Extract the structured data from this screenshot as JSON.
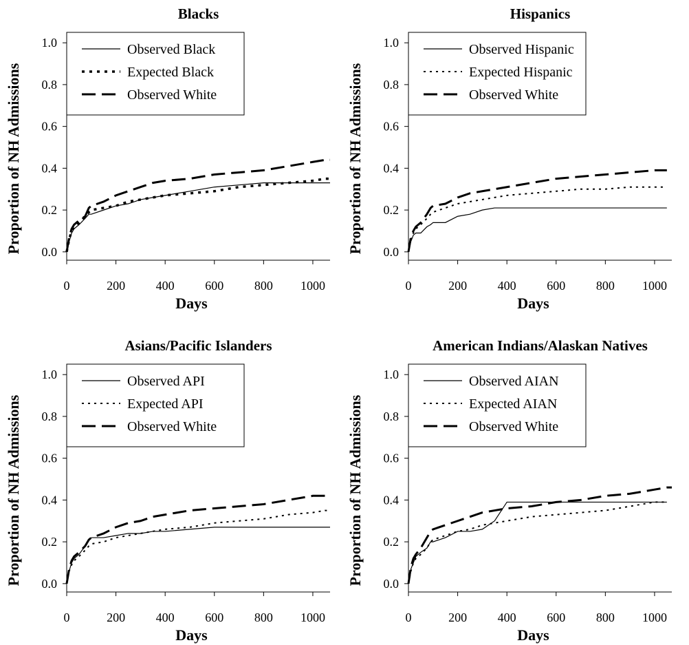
{
  "chart_data": [
    {
      "type": "line",
      "title": "Blacks",
      "x_label": "Days",
      "y_label": "Proportion of NH Admissions",
      "x": [
        0,
        10,
        20,
        30,
        50,
        75,
        90,
        100,
        150,
        200,
        250,
        300,
        350,
        400,
        500,
        600,
        700,
        800,
        900,
        1000,
        1050,
        1070
      ],
      "xlim": [
        0,
        1070
      ],
      "ylim": [
        -0.04,
        1.05
      ],
      "xticks": [
        0,
        200,
        400,
        600,
        800,
        1000
      ],
      "yticks": [
        {
          "value": 0,
          "label": "0.0"
        },
        {
          "value": 0.2,
          "label": "0.2"
        },
        {
          "value": 0.4,
          "label": "0.4"
        },
        {
          "value": 0.6,
          "label": "0.6"
        },
        {
          "value": 0.8,
          "label": "0.8"
        },
        {
          "value": 1,
          "label": "1.0"
        }
      ],
      "legend": "upper left",
      "series": [
        {
          "name": "Observed Black",
          "color": "#000000",
          "linestyle": "solid",
          "linewidth": 1.2,
          "values": [
            0,
            0.05,
            0.09,
            0.11,
            0.13,
            0.16,
            0.18,
            0.18,
            0.2,
            0.22,
            0.23,
            0.25,
            0.26,
            0.27,
            0.29,
            0.31,
            0.32,
            0.33,
            0.33,
            0.33,
            0.33,
            0.33
          ]
        },
        {
          "name": "Expected Black",
          "color": "#000000",
          "linestyle": "dotted",
          "linewidth": 3.5,
          "values": [
            0,
            0.06,
            0.1,
            0.12,
            0.14,
            0.17,
            0.19,
            0.2,
            0.21,
            0.22,
            0.24,
            0.25,
            0.26,
            0.27,
            0.28,
            0.29,
            0.31,
            0.32,
            0.33,
            0.34,
            0.35,
            0.35
          ]
        },
        {
          "name": "Observed White",
          "color": "#000000",
          "linestyle": "dashed",
          "linewidth": 3,
          "values": [
            0,
            0.07,
            0.11,
            0.13,
            0.15,
            0.17,
            0.21,
            0.22,
            0.24,
            0.27,
            0.29,
            0.31,
            0.33,
            0.34,
            0.35,
            0.37,
            0.38,
            0.39,
            0.41,
            0.43,
            0.44,
            0.44
          ]
        }
      ]
    },
    {
      "type": "line",
      "title": "Hispanics",
      "x_label": "Days",
      "y_label": "Proportion of NH Admissions",
      "x": [
        0,
        10,
        20,
        30,
        50,
        75,
        90,
        100,
        150,
        200,
        250,
        300,
        350,
        400,
        500,
        600,
        700,
        800,
        900,
        1000,
        1050,
        1070
      ],
      "xlim": [
        0,
        1070
      ],
      "ylim": [
        -0.04,
        1.05
      ],
      "xticks": [
        0,
        200,
        400,
        600,
        800,
        1000
      ],
      "yticks": [
        {
          "value": 0,
          "label": "0.0"
        },
        {
          "value": 0.2,
          "label": "0.2"
        },
        {
          "value": 0.4,
          "label": "0.4"
        },
        {
          "value": 0.6,
          "label": "0.6"
        },
        {
          "value": 0.8,
          "label": "0.8"
        },
        {
          "value": 1,
          "label": "1.0"
        }
      ],
      "legend": "upper left",
      "series": [
        {
          "name": "Observed Hispanic",
          "color": "#000000",
          "linestyle": "solid",
          "linewidth": 1.2,
          "values": [
            0,
            0.05,
            0.08,
            0.09,
            0.09,
            0.12,
            0.13,
            0.14,
            0.14,
            0.17,
            0.18,
            0.2,
            0.21,
            0.21,
            0.21,
            0.21,
            0.21,
            0.21,
            0.21,
            0.21,
            0.21,
            null
          ]
        },
        {
          "name": "Expected Hispanic",
          "color": "#000000",
          "linestyle": "dotted",
          "linewidth": 2,
          "values": [
            0,
            0.06,
            0.09,
            0.11,
            0.13,
            0.16,
            0.18,
            0.19,
            0.21,
            0.23,
            0.24,
            0.25,
            0.26,
            0.27,
            0.28,
            0.29,
            0.3,
            0.3,
            0.31,
            0.31,
            0.31,
            null
          ]
        },
        {
          "name": "Observed White",
          "color": "#000000",
          "linestyle": "dashed",
          "linewidth": 3,
          "values": [
            0,
            0.07,
            0.1,
            0.12,
            0.14,
            0.18,
            0.21,
            0.22,
            0.23,
            0.26,
            0.28,
            0.29,
            0.3,
            0.31,
            0.33,
            0.35,
            0.36,
            0.37,
            0.38,
            0.39,
            0.39,
            null
          ]
        }
      ]
    },
    {
      "type": "line",
      "title": "Asians/Pacific Islanders",
      "x_label": "Days",
      "y_label": "Proportion of NH Admissions",
      "x": [
        0,
        10,
        20,
        30,
        50,
        75,
        90,
        100,
        150,
        200,
        250,
        300,
        350,
        400,
        500,
        600,
        700,
        800,
        900,
        1000,
        1050,
        1070
      ],
      "xlim": [
        0,
        1070
      ],
      "ylim": [
        -0.04,
        1.05
      ],
      "xticks": [
        0,
        200,
        400,
        600,
        800,
        1000
      ],
      "yticks": [
        {
          "value": 0,
          "label": "0.0"
        },
        {
          "value": 0.2,
          "label": "0.2"
        },
        {
          "value": 0.4,
          "label": "0.4"
        },
        {
          "value": 0.6,
          "label": "0.6"
        },
        {
          "value": 0.8,
          "label": "0.8"
        },
        {
          "value": 1,
          "label": "1.0"
        }
      ],
      "legend": "upper left",
      "series": [
        {
          "name": "Observed API",
          "color": "#000000",
          "linestyle": "solid",
          "linewidth": 1.2,
          "values": [
            0,
            0.06,
            0.1,
            0.12,
            0.14,
            0.18,
            0.21,
            0.22,
            0.22,
            0.23,
            0.24,
            0.24,
            0.25,
            0.25,
            0.26,
            0.27,
            0.27,
            0.27,
            0.27,
            0.27,
            0.27,
            0.27
          ]
        },
        {
          "name": "Expected API",
          "color": "#000000",
          "linestyle": "dotted",
          "linewidth": 2,
          "values": [
            0,
            0.06,
            0.09,
            0.11,
            0.13,
            0.16,
            0.18,
            0.19,
            0.2,
            0.22,
            0.23,
            0.24,
            0.25,
            0.26,
            0.27,
            0.29,
            0.3,
            0.31,
            0.33,
            0.34,
            0.35,
            0.35
          ]
        },
        {
          "name": "Observed White",
          "color": "#000000",
          "linestyle": "dashed",
          "linewidth": 3,
          "values": [
            0,
            0.07,
            0.11,
            0.13,
            0.15,
            0.18,
            0.21,
            0.22,
            0.24,
            0.27,
            0.29,
            0.3,
            0.32,
            0.33,
            0.35,
            0.36,
            0.37,
            0.38,
            0.4,
            0.42,
            0.42,
            0.42
          ]
        }
      ]
    },
    {
      "type": "line",
      "title": "American Indians/Alaskan Natives",
      "x_label": "Days",
      "y_label": "Proportion of NH Admissions",
      "x": [
        0,
        10,
        20,
        30,
        50,
        75,
        90,
        100,
        150,
        200,
        250,
        300,
        350,
        400,
        500,
        600,
        700,
        800,
        900,
        1000,
        1050,
        1070
      ],
      "xlim": [
        0,
        1070
      ],
      "ylim": [
        -0.04,
        1.05
      ],
      "xticks": [
        0,
        200,
        400,
        600,
        800,
        1000
      ],
      "yticks": [
        {
          "value": 0,
          "label": "0.0"
        },
        {
          "value": 0.2,
          "label": "0.2"
        },
        {
          "value": 0.4,
          "label": "0.4"
        },
        {
          "value": 0.6,
          "label": "0.6"
        },
        {
          "value": 0.8,
          "label": "0.8"
        },
        {
          "value": 1,
          "label": "1.0"
        }
      ],
      "legend": "upper left",
      "series": [
        {
          "name": "Observed AIAN",
          "color": "#000000",
          "linestyle": "solid",
          "linewidth": 1.2,
          "values": [
            0,
            0.07,
            0.1,
            0.13,
            0.15,
            0.17,
            0.2,
            0.2,
            0.22,
            0.25,
            0.25,
            0.26,
            0.3,
            0.39,
            0.39,
            0.39,
            0.39,
            0.39,
            0.39,
            0.39,
            0.39,
            null
          ]
        },
        {
          "name": "Expected AIAN",
          "color": "#000000",
          "linestyle": "dotted",
          "linewidth": 2,
          "values": [
            0,
            0.06,
            0.1,
            0.12,
            0.14,
            0.17,
            0.2,
            0.21,
            0.23,
            0.25,
            0.26,
            0.28,
            0.29,
            0.3,
            0.32,
            0.33,
            0.34,
            0.35,
            0.37,
            0.39,
            0.39,
            null
          ]
        },
        {
          "name": "Observed White",
          "color": "#000000",
          "linestyle": "dashed",
          "linewidth": 3,
          "values": [
            0,
            0.08,
            0.12,
            0.14,
            0.17,
            0.22,
            0.25,
            0.26,
            0.28,
            0.3,
            0.32,
            0.34,
            0.35,
            0.36,
            0.37,
            0.39,
            0.4,
            0.42,
            0.43,
            0.45,
            0.46,
            0.46
          ]
        }
      ]
    }
  ]
}
